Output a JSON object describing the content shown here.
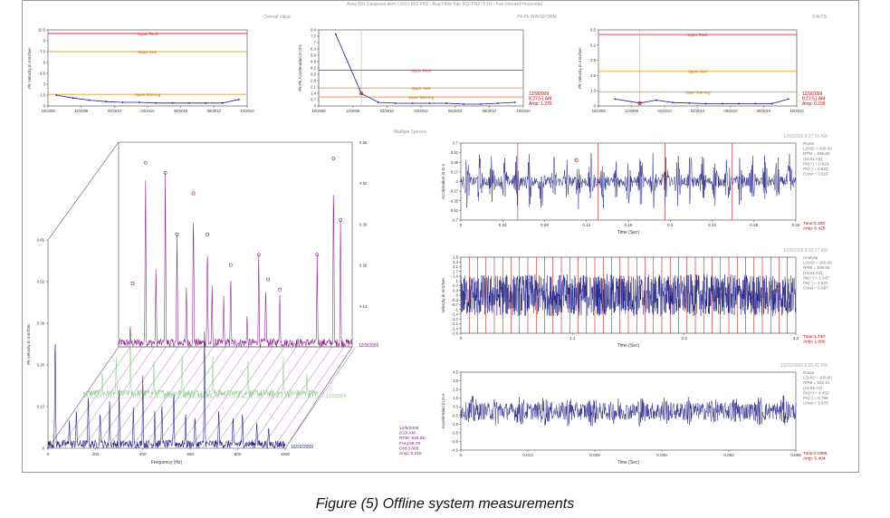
{
  "header": {
    "title": "Area 500 Database.dcm / 500 / 502-FN2 - Bag Filter Fan 502-FN2 / F1H - Fan Inboard Horizontal",
    "panel_labels": [
      "Overall Value",
      "Pk-Pk WAVEFORM",
      "3-8xTS"
    ],
    "spectra_label": "Multiple Spectra"
  },
  "caption": "Figure (5) Offline system measurements",
  "colors": {
    "fault": "#e8323c",
    "alert": "#f0a020",
    "warning": "#e0a040",
    "trend": "#1a1aa0",
    "purple": "#8b1a8b",
    "green": "#90d090",
    "navy": "#1a1a80",
    "readout": "#c00000"
  },
  "chart_data": [
    {
      "type": "line",
      "ylabel": "Pk Velocity in mm/Sec",
      "ylim": [
        0,
        10.5
      ],
      "y_ticks": [
        "0",
        "1.5",
        "3",
        "4.5",
        "6",
        "7.5",
        "9",
        "10.5"
      ],
      "x_ticks": [
        "10/2009",
        "12/2009",
        "02/2010",
        "04/2010",
        "06/2010",
        "08/2010",
        "10/2010"
      ],
      "thresholds": [
        {
          "name": "Upper Fault",
          "value": 10.0
        },
        {
          "name": "Upper Alert",
          "value": 7.5
        },
        {
          "name": "Upper Warning",
          "value": 1.6
        }
      ],
      "x": [
        0.5,
        1.5,
        2.5,
        3.5,
        4.5,
        5.5,
        6.5,
        7.5,
        8.5,
        9.5,
        10.5,
        11.5
      ],
      "values": [
        1.5,
        1.1,
        0.8,
        0.6,
        0.5,
        0.5,
        0.4,
        0.4,
        0.4,
        0.4,
        0.4,
        0.9
      ]
    },
    {
      "type": "line",
      "ylabel": "Pk-Pk Acceleration in G's",
      "ylim": [
        0,
        8.5
      ],
      "y_ticks": [
        "0",
        "0.7",
        "1.4",
        "2.1",
        "2.8",
        "3.5",
        "4.2",
        "4.9",
        "5.6",
        "6.3",
        "7",
        "7.7",
        "8.4"
      ],
      "x_ticks": [
        "10/2009",
        "12/2009",
        "02/2010",
        "04/2010",
        "06/2010",
        "08/2010",
        "10/2010"
      ],
      "thresholds": [
        {
          "name": "Upper Fault",
          "value": 4.0
        },
        {
          "name": "Upper Alert",
          "value": 2.0
        },
        {
          "name": "Upper Warning",
          "value": 1.0
        }
      ],
      "x": [
        1.0,
        2.5,
        3.5,
        4.5,
        5.5,
        6.5,
        7.5,
        8.5,
        9.5,
        10.5,
        11.5
      ],
      "values": [
        8.0,
        1.4,
        0.4,
        0.3,
        0.3,
        0.3,
        0.3,
        0.2,
        0.2,
        0.3,
        0.4
      ],
      "readout": [
        "12/9/2009",
        "8:27:51 AM",
        "Amp: 1.275"
      ]
    },
    {
      "type": "line",
      "ylabel": "Pk Velocity in mm/Sec",
      "ylim": [
        0,
        6.6
      ],
      "y_ticks": [
        "0",
        "1.3",
        "2.6",
        "3.9",
        "5.2",
        "6.5"
      ],
      "x_ticks": [
        "10/2009",
        "12/2009",
        "02/2010",
        "04/2010",
        "06/2010",
        "08/2010",
        "10/2010"
      ],
      "thresholds": [
        {
          "name": "Upper Fault",
          "value": 6.2
        },
        {
          "name": "Upper Alert",
          "value": 3.0
        },
        {
          "name": "Upper Warning",
          "value": 1.2
        }
      ],
      "x": [
        1.0,
        2.5,
        3.5,
        4.5,
        5.5,
        6.5,
        7.5,
        8.5,
        9.5,
        10.5,
        11.5
      ],
      "values": [
        0.6,
        0.25,
        0.5,
        0.3,
        0.25,
        0.2,
        0.2,
        0.2,
        0.2,
        0.2,
        0.6
      ],
      "readout": [
        "12/9/2009",
        "8:27:51 AM",
        "Amp: 0.239"
      ]
    },
    {
      "type": "line",
      "subtype": "waterfall",
      "xlabel": "Frequency (Hz)",
      "ylabel": "Pk Velocity in mm/Sec",
      "x_ticks": [
        "0",
        "200",
        "400",
        "600",
        "800",
        "1000"
      ],
      "y_ticks": [
        "0",
        "0.13",
        "0.26",
        "0.39",
        "0.52",
        "0.65"
      ],
      "back_ticks": [
        "0.13",
        "0.26",
        "0.39",
        "0.52",
        "0.65"
      ],
      "series": [
        {
          "name": "12/9/2009"
        },
        {
          "name": "12/9/2009"
        },
        {
          "name": "10/22/2009"
        }
      ],
      "readout": [
        "12/9/2009",
        "8:20 AM",
        "RPM: 936.85",
        "Freq:56.29",
        "Ord:3.605",
        "Amp: 0.219"
      ]
    },
    {
      "type": "line",
      "ylabel": "Acceleration in G-s",
      "xlabel": "Time (Sec)",
      "ylim": [
        -0.7,
        0.7
      ],
      "y_ticks": [
        "-0.7",
        "-0.52",
        "-0.35",
        "-0.17",
        "0",
        "0.17",
        "0.35",
        "0.52",
        "0.7"
      ],
      "x_ticks": [
        "0",
        "0.04",
        "0.08",
        "0.12",
        "0.16",
        "0.2",
        "0.24",
        "0.28",
        "0.32"
      ],
      "xlim": [
        0,
        0.32
      ],
      "timestamp": "12/9/2009 8:27:51 AM",
      "info": [
        "Route",
        "LOAD = 100.00",
        "RPM = 936.85",
        "(15.61 Hz)",
        "PK(+) = 0.624",
        "PK(-) = 0.653",
        "Crest = 3.513"
      ],
      "readout": [
        "Time:0.109",
        "Amp: 0.425"
      ]
    },
    {
      "type": "line",
      "ylabel": "Velocity in mm/Sec",
      "xlabel": "Time (Sec)",
      "ylim": [
        -2.8,
        2.8
      ],
      "y_ticks": [
        "-2.8",
        "-2.4",
        "-2.1",
        "-1.7",
        "-1.4",
        "-1",
        "-0.7",
        "-0.3",
        "0",
        "0.3",
        "0.7",
        "1",
        "1.4",
        "1.7",
        "2.1",
        "2.4",
        "2.8"
      ],
      "x_ticks": [
        "0",
        "1.1",
        "2.2",
        "3.3"
      ],
      "xlim": [
        0,
        3.3
      ],
      "timestamp": "12/9/2009 8:20:17 AM",
      "info": [
        "Analyse",
        "LOAD = 100.00",
        "RPM = 936.85",
        "(15.61 Hz)",
        "PK(+) = 2.047",
        "PK(-) = 2.637",
        "Crest = 5.097"
      ],
      "readout": [
        "Time:1.740",
        "Amp: 1.080"
      ]
    },
    {
      "type": "line",
      "ylabel": "Acceleration in G-s",
      "xlabel": "Time (Sec)",
      "ylim": [
        -4.5,
        4.5
      ],
      "y_ticks": [
        "-4.5",
        "-3.5",
        "-2.5",
        "-1.5",
        "-0.5",
        "0.5",
        "1.5",
        "2.5",
        "3.5",
        "4.5"
      ],
      "x_ticks": [
        "0",
        "0.013",
        "0.026",
        "0.039",
        "0.052",
        "0.065"
      ],
      "xlim": [
        0,
        0.065
      ],
      "timestamp": "10/22/2009 8:25:41 PM",
      "info": [
        "Route",
        "LOAD = 100.00",
        "RPM = 932.91",
        "(15.55 Hz)",
        "PK(+) = 4.453",
        "PK(-) = 3.796",
        "Crest = 3.978"
      ],
      "readout": [
        "Time:0.0365",
        "Amp: 0.404"
      ]
    }
  ]
}
